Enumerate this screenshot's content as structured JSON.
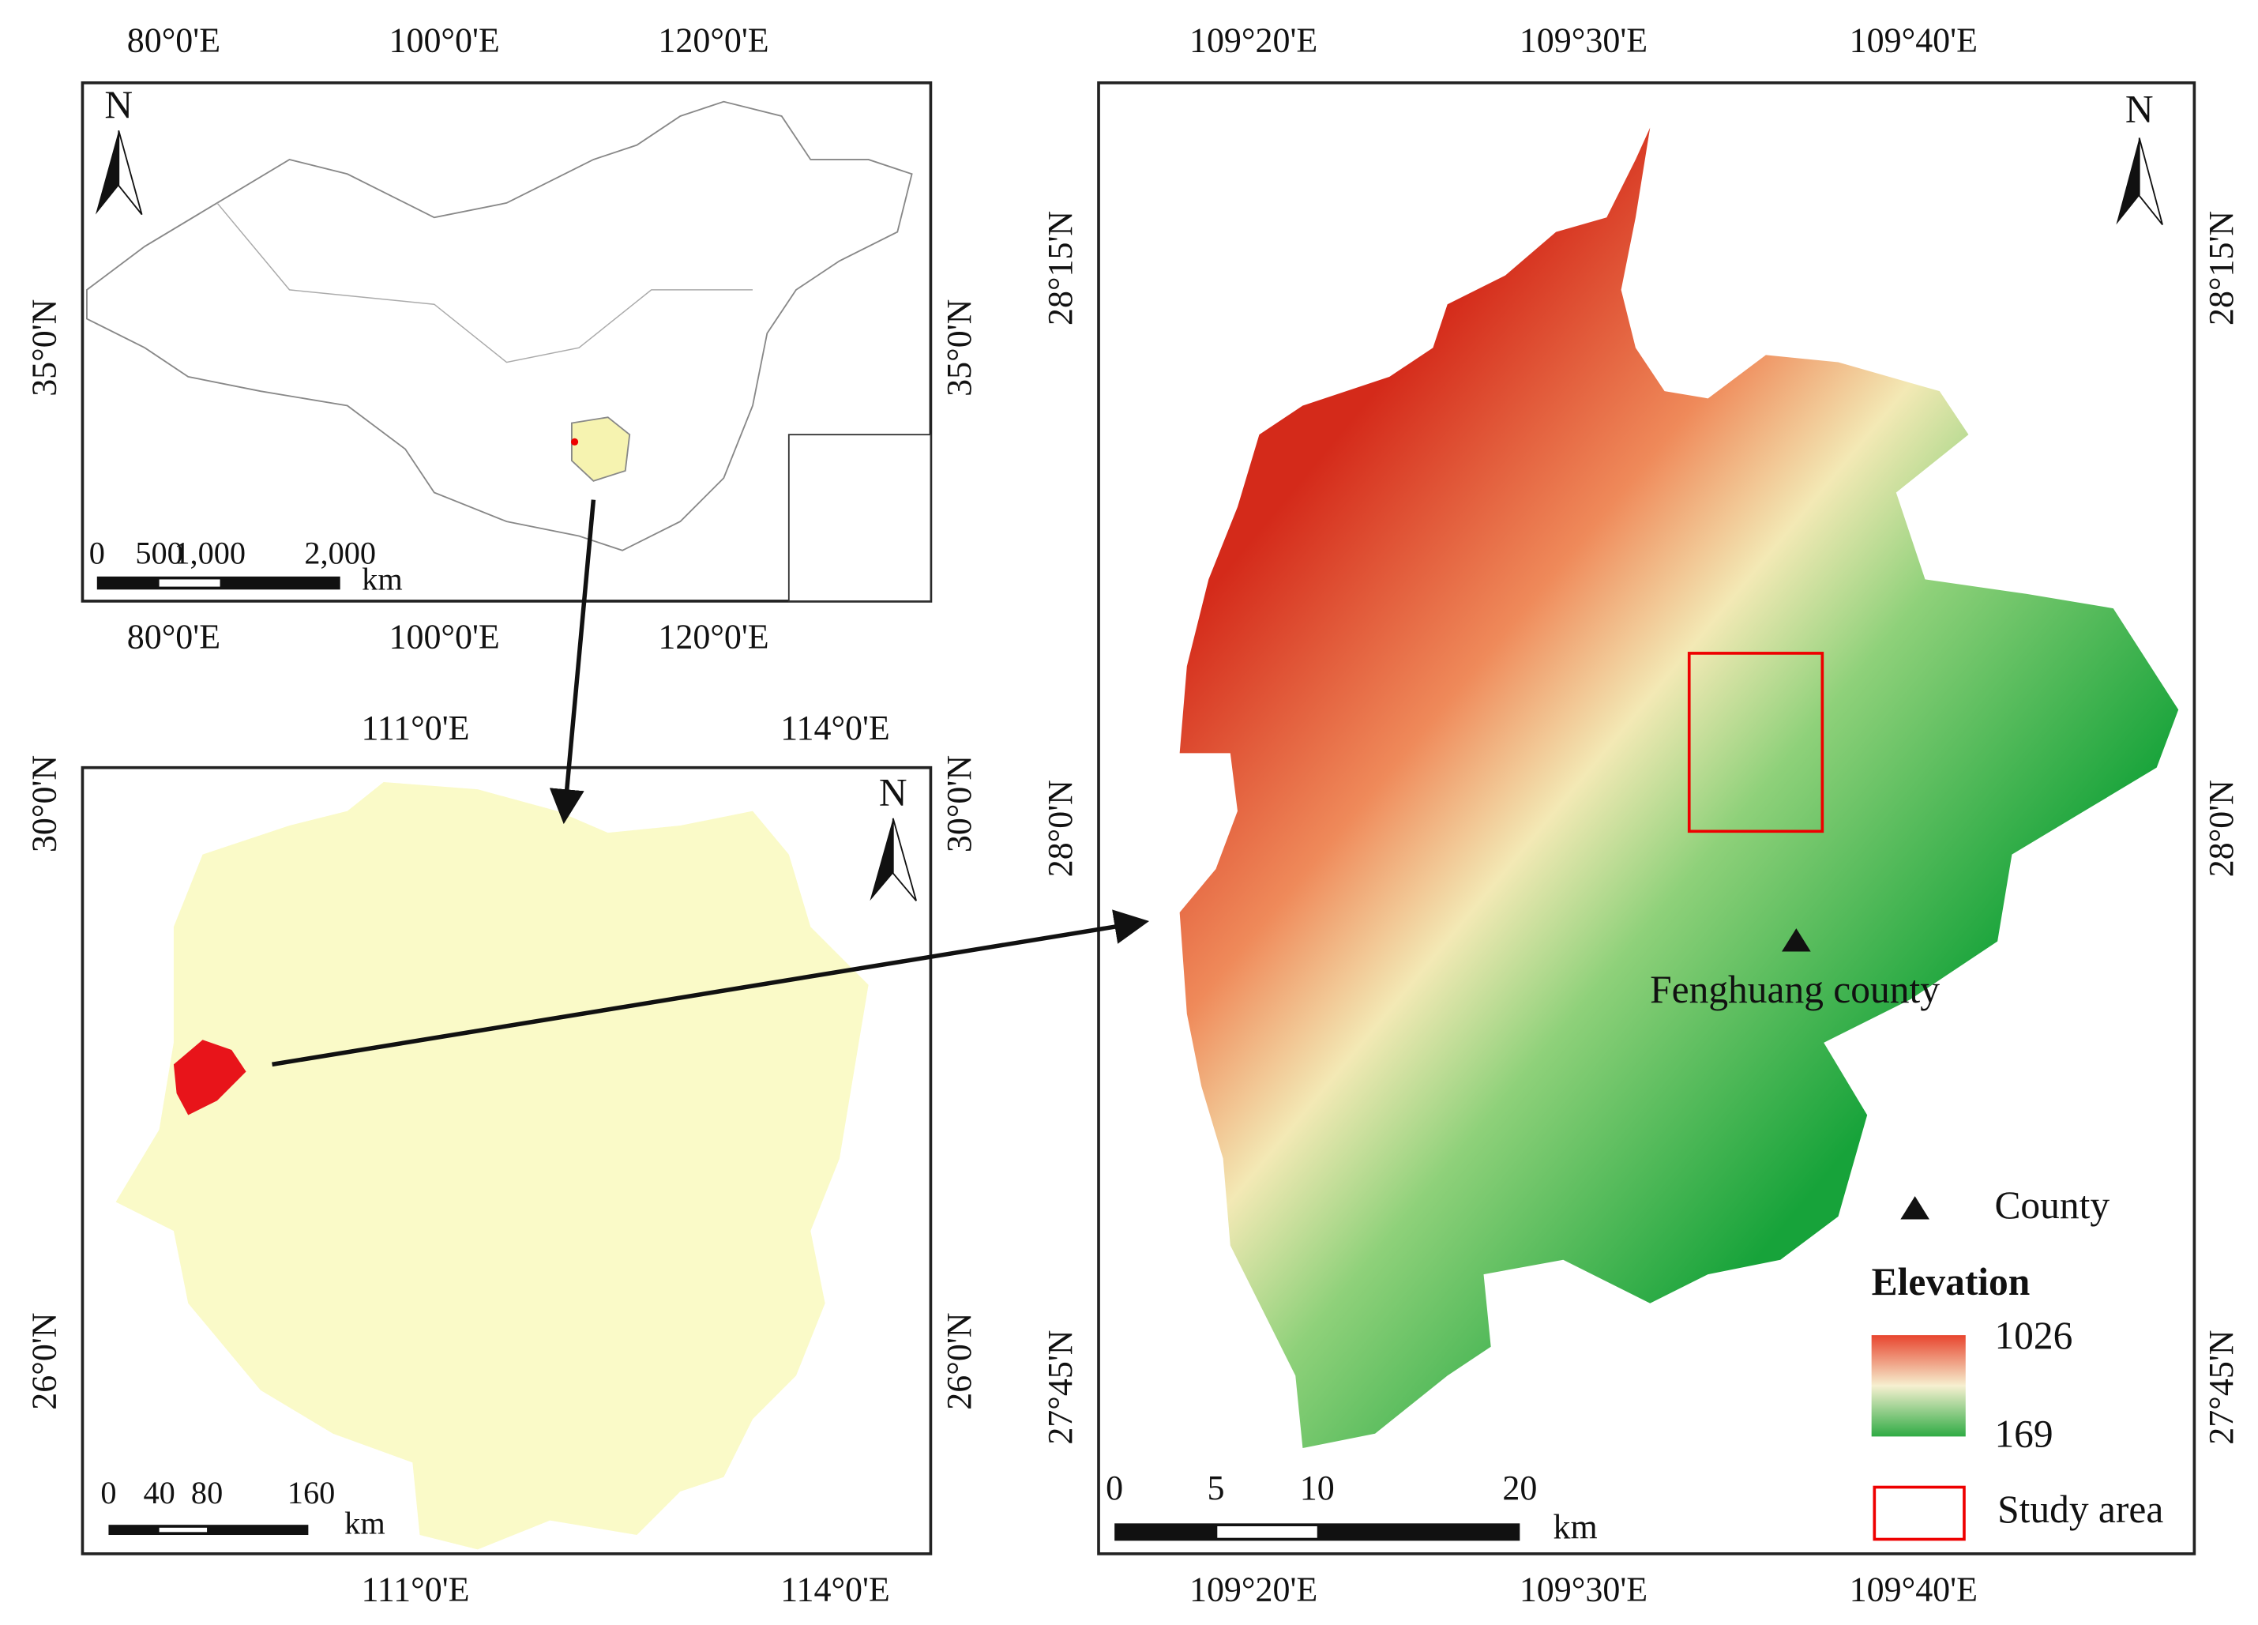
{
  "inset_china": {
    "north": "N",
    "top_ticks": [
      "80°0'E",
      "100°0'E",
      "120°0'E"
    ],
    "bottom_ticks": [
      "80°0'E",
      "100°0'E",
      "120°0'E"
    ],
    "left_ticks": [
      "35°0'N"
    ],
    "right_ticks": [
      "35°0'N"
    ],
    "scale": {
      "labels": [
        "0",
        "500",
        "1,000",
        "2,000"
      ],
      "unit": "km"
    }
  },
  "inset_hunan": {
    "north": "N",
    "top_ticks": [
      "111°0'E",
      "114°0'E"
    ],
    "bottom_ticks": [
      "111°0'E",
      "114°0'E"
    ],
    "left_ticks": [
      "30°0'N",
      "26°0'N"
    ],
    "right_ticks": [
      "30°0'N",
      "26°0'N"
    ],
    "scale": {
      "labels": [
        "0",
        "40",
        "80",
        "160"
      ],
      "unit": "km"
    }
  },
  "main_map": {
    "north": "N",
    "top_ticks": [
      "109°20'E",
      "109°30'E",
      "109°40'E"
    ],
    "bottom_ticks": [
      "109°20'E",
      "109°30'E",
      "109°40'E"
    ],
    "left_ticks": [
      "28°15'N",
      "28°0'N",
      "27°45'N"
    ],
    "right_ticks": [
      "28°15'N",
      "28°0'N",
      "27°45'N"
    ],
    "county_label": "Fenghuang county",
    "scale": {
      "labels": [
        "0",
        "5",
        "10",
        "20"
      ],
      "unit": "km"
    },
    "legend": {
      "county": "County",
      "elevation_title": "Elevation",
      "elevation_max": 1026,
      "elevation_min": 169,
      "study_area": "Study area"
    }
  }
}
